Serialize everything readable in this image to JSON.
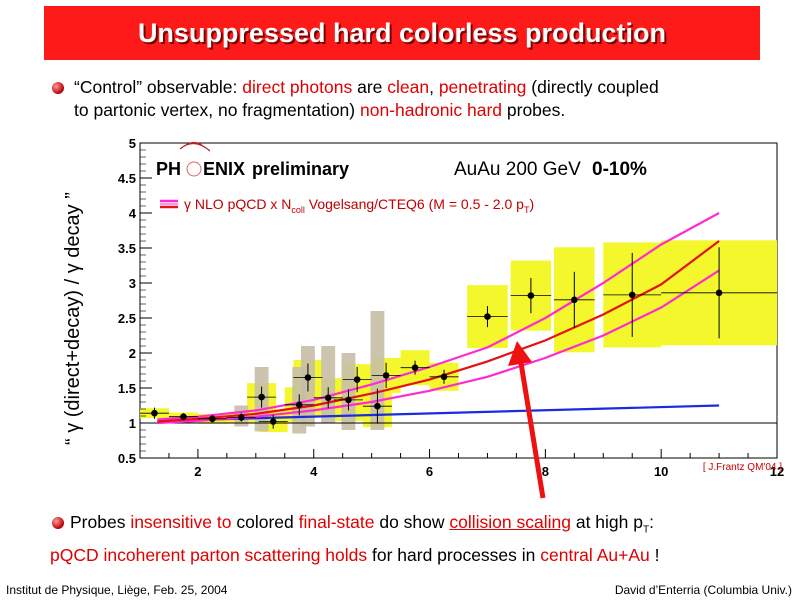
{
  "slide": {
    "title": "Unsuppressed hard colorless production",
    "bullet1": {
      "t1": "“Control” observable: ",
      "r1": "direct photons",
      "t2": " are ",
      "r2": "clean",
      "t3": ", ",
      "r3": "penetrating",
      "t4": " (directly coupled",
      "t5": "to partonic vertex, no fragmentation) ",
      "r4": "non-hadronic hard",
      "t6": " probes."
    },
    "bullet2": {
      "t1": "Probes ",
      "r1": "insensitive to",
      "t2": " colored ",
      "r2": "final-state",
      "t3": " do show ",
      "r3": "collision scaling",
      "t4": " at high p",
      "sub": "T",
      "t5": ":"
    },
    "line3": {
      "r1": "pQCD incoherent parton scattering holds",
      "t1": " for hard processes in ",
      "r2": "central Au+Au",
      "t2": " !"
    },
    "footer_left": "Institut de Physique, Liège, Feb. 25, 2004",
    "footer_right": "David d’Enterria (Columbia Univ.)",
    "colors": {
      "title_bg": "#ff1a1a",
      "accent_text": "#e00000"
    }
  },
  "chart_data": {
    "type": "scatter",
    "ylabel": "“ γ (direct+decay) / γ decay ”",
    "xlim": [
      1,
      12
    ],
    "ylim": [
      0.5,
      5
    ],
    "x_ticks": [
      2,
      4,
      6,
      8,
      10,
      12
    ],
    "y_ticks": [
      0.5,
      1,
      1.5,
      2,
      2.5,
      3,
      3.5,
      4,
      4.5,
      5
    ],
    "experiment_word_left": "PH",
    "experiment_word_right": "ENIX",
    "header_word": "preliminary",
    "system_label": "AuAu 200 GeV",
    "centrality_label": "0-10%",
    "legend_text": "γ NLO pQCD  x N",
    "legend_sub": "coll",
    "legend_text2": " Vogelsang/CTEQ6 (M = 0.5 - 2.0 p",
    "legend_sub2": "T",
    "legend_text3": ")",
    "citation": "[ J.Frantz QM'04 ]",
    "reference_line": 1,
    "series": [
      {
        "name": "data",
        "points": [
          {
            "x": 1.25,
            "y": 1.14,
            "err": 0.08,
            "sys": 0.07
          },
          {
            "x": 1.75,
            "y": 1.09,
            "err": 0.05,
            "sys": 0.06
          },
          {
            "x": 2.25,
            "y": 1.06,
            "err": 0.05,
            "sys": 0.07
          },
          {
            "x": 2.75,
            "y": 1.08,
            "err": 0.06,
            "sys": 0.08
          },
          {
            "x": 3.1,
            "y": 1.37,
            "err": 0.15,
            "sys": 0.2
          },
          {
            "x": 3.3,
            "y": 1.02,
            "err": 0.1,
            "sys": 0.15
          },
          {
            "x": 3.75,
            "y": 1.26,
            "err": 0.15,
            "sys": 0.25
          },
          {
            "x": 3.9,
            "y": 1.65,
            "err": 0.2,
            "sys": 0.25
          },
          {
            "x": 4.25,
            "y": 1.36,
            "err": 0.15,
            "sys": 0.28
          },
          {
            "x": 4.6,
            "y": 1.33,
            "err": 0.15,
            "sys": 0.3
          },
          {
            "x": 4.75,
            "y": 1.62,
            "err": 0.18,
            "sys": 0.22
          },
          {
            "x": 5.1,
            "y": 1.24,
            "err": 0.25,
            "sys": 0.3
          },
          {
            "x": 5.25,
            "y": 1.68,
            "err": 0.18,
            "sys": 0.25
          },
          {
            "x": 5.75,
            "y": 1.79,
            "err": 0.1,
            "sys": 0.25
          },
          {
            "x": 6.25,
            "y": 1.66,
            "err": 0.1,
            "sys": 0.2
          },
          {
            "x": 7.0,
            "y": 2.52,
            "err": 0.15,
            "sys": 0.45
          },
          {
            "x": 7.75,
            "y": 2.82,
            "err": 0.25,
            "sys": 0.5
          },
          {
            "x": 8.5,
            "y": 2.76,
            "err": 0.4,
            "sys": 0.75
          },
          {
            "x": 9.5,
            "y": 2.83,
            "err": 0.6,
            "sys": 0.75
          },
          {
            "x": 11.0,
            "y": 2.86,
            "err": 0.65,
            "sys": 0.75
          }
        ]
      },
      {
        "name": "grey systematic bands",
        "boxes": [
          {
            "x": 2.75,
            "lo": 0.95,
            "hi": 1.25
          },
          {
            "x": 3.1,
            "lo": 0.88,
            "hi": 1.8
          },
          {
            "x": 3.75,
            "lo": 0.85,
            "hi": 1.8
          },
          {
            "x": 3.9,
            "lo": 0.95,
            "hi": 2.1
          },
          {
            "x": 4.25,
            "lo": 1.0,
            "hi": 2.1
          },
          {
            "x": 4.6,
            "lo": 0.9,
            "hi": 2.0
          },
          {
            "x": 5.1,
            "lo": 0.9,
            "hi": 2.6
          }
        ]
      },
      {
        "name": "NLO central",
        "x": [
          1.3,
          2,
          3,
          4,
          5,
          6,
          7,
          8,
          9,
          10,
          11
        ],
        "y": [
          1.02,
          1.06,
          1.13,
          1.25,
          1.42,
          1.62,
          1.88,
          2.18,
          2.55,
          2.98,
          3.6
        ]
      },
      {
        "name": "NLO upper",
        "x": [
          1.3,
          2,
          3,
          4,
          5,
          6,
          7,
          8,
          9,
          10,
          11
        ],
        "y": [
          1.05,
          1.09,
          1.18,
          1.33,
          1.55,
          1.8,
          2.08,
          2.5,
          3.0,
          3.55,
          4.0
        ]
      },
      {
        "name": "NLO lower",
        "x": [
          1.3,
          2,
          3,
          4,
          5,
          6,
          7,
          8,
          9,
          10,
          11
        ],
        "y": [
          1.0,
          1.03,
          1.09,
          1.18,
          1.3,
          1.46,
          1.66,
          1.93,
          2.25,
          2.65,
          3.18
        ]
      },
      {
        "name": "blue",
        "x": [
          1.3,
          11
        ],
        "y": [
          1.03,
          1.25
        ]
      }
    ],
    "colors": {
      "yellow": "#f3f72b",
      "grey": "#c8bea6",
      "red": "#e41212",
      "magenta": "#ff2ad4",
      "blue": "#1a2be0",
      "arrow": "#ee1111"
    }
  }
}
